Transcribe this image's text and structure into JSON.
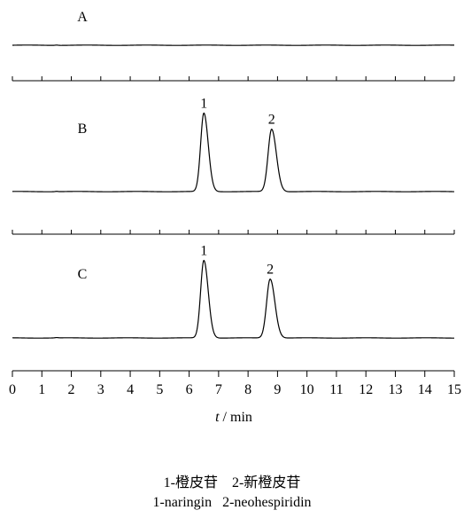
{
  "chart_data": {
    "type": "line",
    "xlabel_italic": "t",
    "xlabel_rest": " / min",
    "xlim": [
      0,
      15
    ],
    "x_ticks": [
      "0",
      "1",
      "2",
      "3",
      "4",
      "5",
      "6",
      "7",
      "8",
      "9",
      "10",
      "11",
      "12",
      "13",
      "14",
      "15"
    ],
    "panels": [
      {
        "label": "A",
        "peaks": []
      },
      {
        "label": "B",
        "peaks": [
          {
            "label": "1",
            "rt": 6.5,
            "height": 0.93,
            "width": 0.11
          },
          {
            "label": "2",
            "rt": 8.8,
            "height": 0.74,
            "width": 0.12
          }
        ]
      },
      {
        "label": "C",
        "peaks": [
          {
            "label": "1",
            "rt": 6.5,
            "height": 0.92,
            "width": 0.11
          },
          {
            "label": "2",
            "rt": 8.75,
            "height": 0.7,
            "width": 0.12
          }
        ]
      }
    ],
    "legend_lines": [
      "1-橙皮苷    2-新橙皮苷",
      "1-naringin   2-neohespiridin"
    ]
  }
}
